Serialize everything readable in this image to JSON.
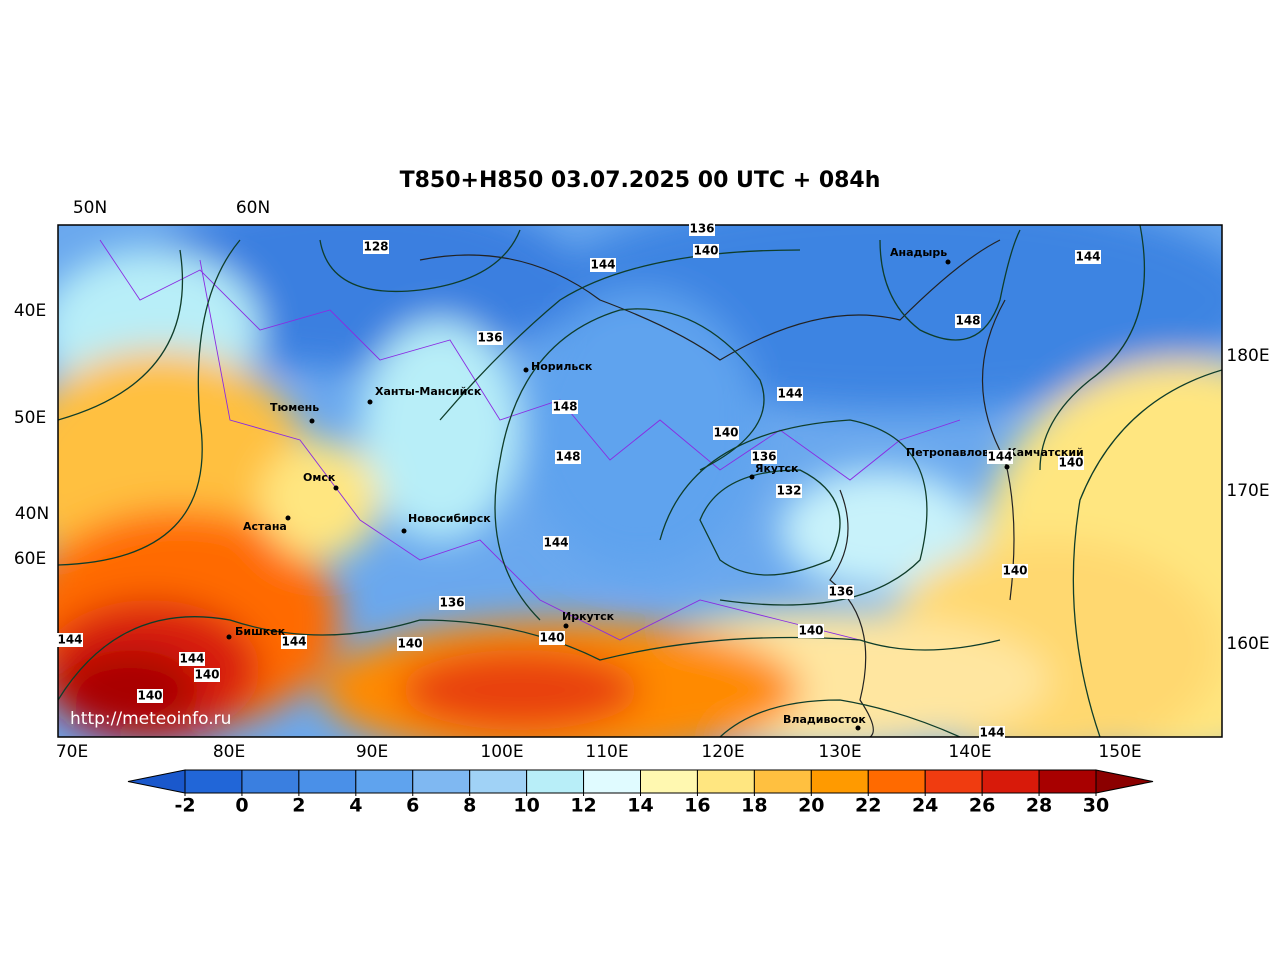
{
  "title": "T850+H850 03.07.2025 00 UTC + 084h",
  "grid_labels": [
    "50N",
    "60N",
    "40E",
    "50E",
    "40N",
    "60E",
    "70E",
    "80E",
    "90E",
    "100E",
    "110E",
    "120E",
    "130E",
    "140E",
    "150E",
    "180E",
    "170E",
    "160E"
  ],
  "cities": [
    "Анадырь",
    "Норильск",
    "Ханты-Мансийск",
    "Тюмень",
    "Петропавловск-Камчатский",
    "Якутск",
    "Омск",
    "Астана",
    "Новосибирск",
    "Иркутск",
    "Бишкек",
    "Владивосток"
  ],
  "contour_labels": [
    128,
    136,
    140,
    144,
    144,
    148,
    136,
    144,
    148,
    140,
    148,
    136,
    132,
    144,
    140,
    136,
    136,
    140,
    140,
    140,
    144,
    144,
    144,
    140,
    140,
    144,
    140,
    144
  ],
  "source": "http://meteoinfo.ru",
  "colorbar": {
    "ticks": [
      -2,
      0,
      2,
      4,
      6,
      8,
      10,
      12,
      14,
      16,
      18,
      20,
      22,
      24,
      26,
      28,
      30
    ],
    "colors": [
      "#2166d8",
      "#3a7fe0",
      "#4a90e8",
      "#5fa3ee",
      "#7fb8f2",
      "#a0d2f6",
      "#b8eef8",
      "#e0fbff",
      "#fff8b0",
      "#ffe680",
      "#ffc040",
      "#ff9a00",
      "#ff6a00",
      "#f03c10",
      "#d81a0a",
      "#a80000"
    ],
    "under_color": "#1a58cc",
    "over_color": "#8b0000"
  }
}
